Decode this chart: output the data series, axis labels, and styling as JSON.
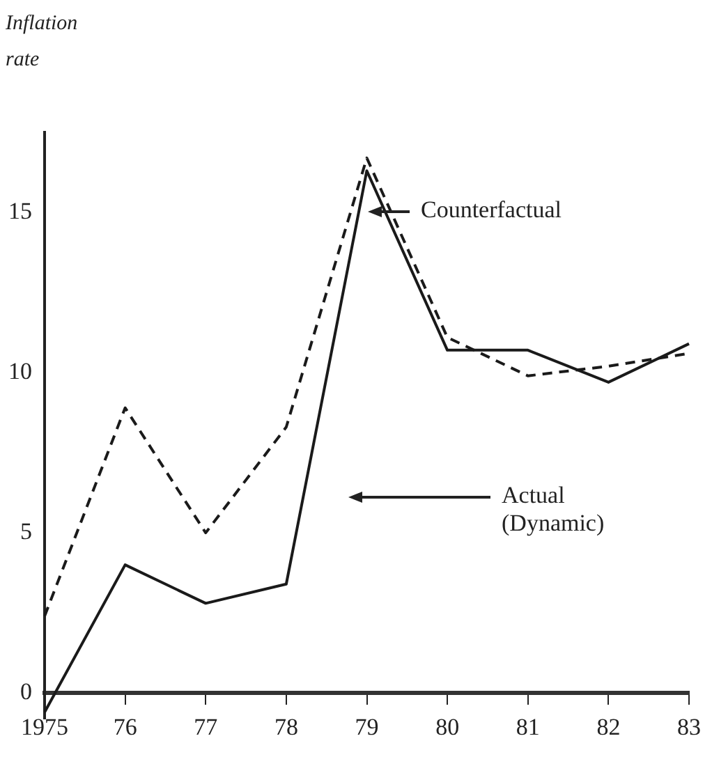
{
  "chart_data": {
    "type": "line",
    "ylabel": "Inflation rate",
    "categories": [
      "1975",
      "76",
      "77",
      "78",
      "79",
      "80",
      "81",
      "82",
      "83"
    ],
    "series": [
      {
        "color": "#1a1a1a",
        "line_style": "solid",
        "values": [
          -0.6,
          4.0,
          2.8,
          3.4,
          16.3,
          10.7,
          10.7,
          9.7,
          10.9
        ]
      },
      {
        "color": "#1a1a1a",
        "line_style": "dashed",
        "values": [
          2.4,
          8.9,
          5.0,
          8.3,
          16.7,
          11.1,
          9.9,
          10.2,
          10.6
        ]
      }
    ],
    "ylim": [
      -0.8,
      17.5
    ],
    "yticks": [
      0,
      5,
      10,
      15
    ],
    "annotations": [
      "Counterfactual",
      "Actual (Dynamic)"
    ],
    "grid": false,
    "legend": false,
    "marker": "none"
  }
}
